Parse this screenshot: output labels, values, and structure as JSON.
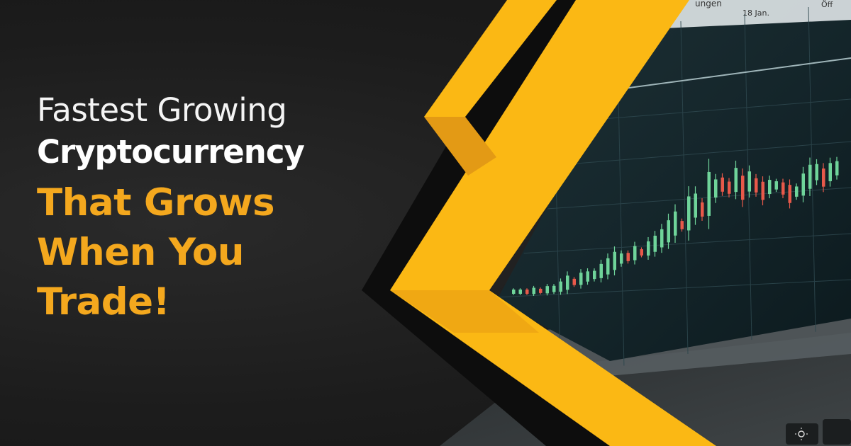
{
  "headline": {
    "line1": "Fastest Growing",
    "line2": "Cryptocurrency",
    "accent_line1": "That Grows",
    "accent_line2": "When You",
    "accent_line3": "Trade!"
  },
  "chart_screen": {
    "header_label_1": "ungen",
    "header_label_2": "18 Jan.",
    "header_label_3": "Öff"
  },
  "colors": {
    "background": "#1d1d1d",
    "accent": "#f4a81e",
    "chevron_shadow": "#d9901a",
    "candle_up": "#6fd49a",
    "candle_down": "#e8594a",
    "headline_text": "#ffffff"
  },
  "icons": [
    "brightness-key-icon"
  ]
}
